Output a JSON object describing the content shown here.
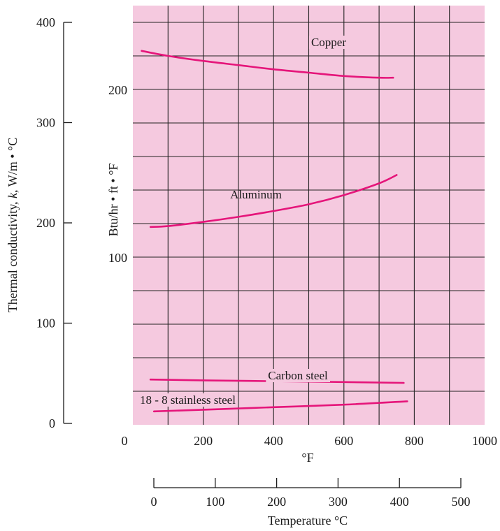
{
  "chart_data": {
    "type": "line",
    "colors": {
      "background": "#f5c9df",
      "line": "#e5157a",
      "grid": "#222222"
    },
    "x_axis_top": {
      "label": "°F",
      "ticks": [
        "0",
        "200",
        "400",
        "600",
        "800",
        "1000"
      ],
      "range": [
        0,
        1000
      ]
    },
    "y_axis_right": {
      "label": "Btu/hr • ft • °F",
      "ticks": [
        "100",
        "200"
      ],
      "range": [
        0,
        250
      ]
    },
    "y_axis_left": {
      "label_parts": [
        "Thermal conductivity, ",
        "k",
        ", W/m • °C"
      ],
      "ticks": [
        "0",
        "100",
        "200",
        "300",
        "400"
      ],
      "range": [
        0,
        400
      ]
    },
    "x_axis_bottom": {
      "label": "Temperature °C",
      "ticks": [
        "0",
        "100",
        "200",
        "300",
        "400",
        "500"
      ],
      "range": [
        0,
        500
      ]
    },
    "grid": true,
    "series": [
      {
        "name": "Copper",
        "x": [
          25,
          100,
          200,
          300,
          400,
          500,
          600,
          700,
          740
        ],
        "y": [
          223,
          220,
          217,
          214.5,
          212,
          210,
          208,
          207,
          207
        ]
      },
      {
        "name": "Aluminum",
        "x": [
          50,
          100,
          200,
          300,
          400,
          500,
          600,
          700,
          750
        ],
        "y": [
          118,
          118.5,
          121,
          124,
          127.5,
          131.5,
          137,
          144,
          149
        ]
      },
      {
        "name": "Carbon steel",
        "x": [
          50,
          200,
          400,
          600,
          770
        ],
        "y": [
          27,
          26.5,
          26,
          25.5,
          25
        ]
      },
      {
        "name": "18 - 8 stainless steel",
        "x": [
          60,
          200,
          400,
          600,
          780
        ],
        "y": [
          8,
          9,
          10.5,
          12,
          14
        ]
      }
    ]
  }
}
